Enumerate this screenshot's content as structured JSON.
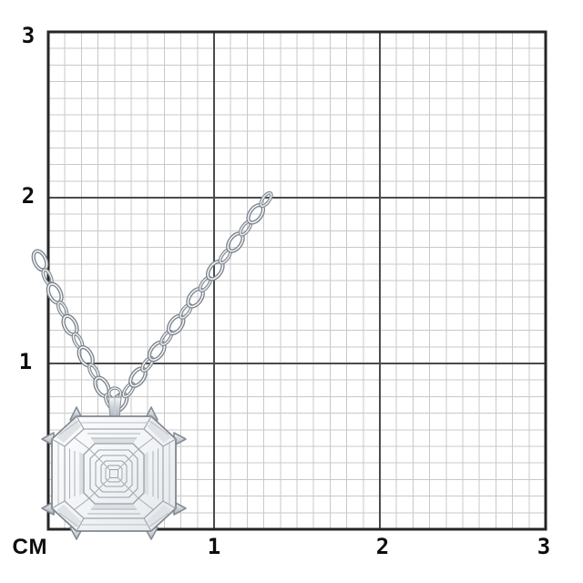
{
  "figure": {
    "alt": "White-gold diamond cluster pendant with asscher-cut center stone hanging on a cable chain, photographed on centimeter graph paper"
  },
  "ruler": {
    "unit_label": "СМ",
    "y_axis_labels": [
      "3",
      "2",
      "1"
    ],
    "x_axis_labels": [
      "1",
      "2",
      "3"
    ],
    "grid_cm_width": 3,
    "grid_cm_height": 3,
    "minor_divisions_per_cm": 10
  },
  "colors": {
    "background": "#ffffff",
    "grid_minor": "#c9c9c9",
    "grid_major": "#4b4b4b",
    "grid_border": "#262626",
    "label_text": "#0d0d0d",
    "chain_metal": "#79818a",
    "chain_metal_light": "#f3f5f7",
    "stone_edge": "#8f959c"
  }
}
